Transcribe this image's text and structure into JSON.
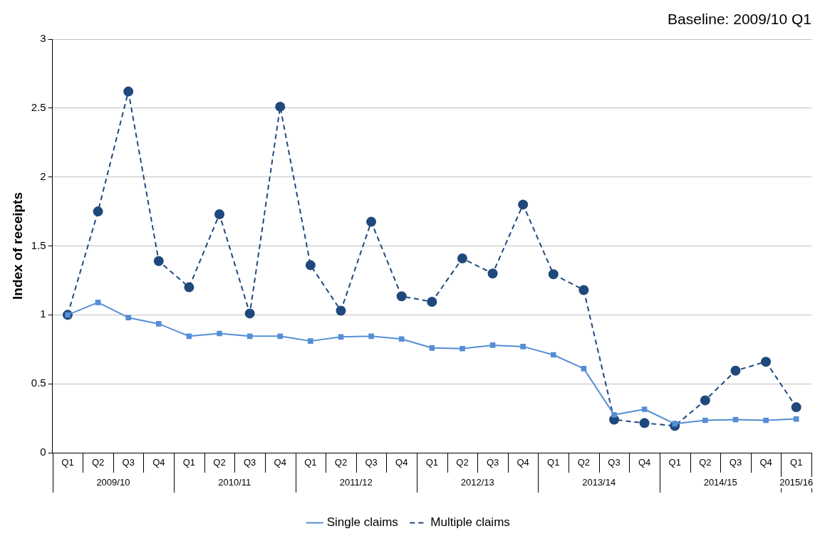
{
  "chart_data": {
    "type": "line",
    "ylabel": "Index of receipts",
    "annotations": [
      "Baseline: 2009/10 Q1",
      "2009/10",
      "2010/11",
      "2011/12",
      "2012/13",
      "2013/14",
      "2014/15",
      "2015/16"
    ],
    "categories": [
      "Q1",
      "Q2",
      "Q3",
      "Q4",
      "Q1",
      "Q2",
      "Q3",
      "Q4",
      "Q1",
      "Q2",
      "Q3",
      "Q4",
      "Q1",
      "Q2",
      "Q3",
      "Q4",
      "Q1",
      "Q2",
      "Q3",
      "Q4",
      "Q1",
      "Q2",
      "Q3",
      "Q4",
      "Q1"
    ],
    "series": [
      {
        "name": "Single claims",
        "color": "#558ed5",
        "marker": "square",
        "line_style": "solid",
        "values": [
          1.0,
          1.09,
          0.98,
          0.935,
          0.845,
          0.865,
          0.845,
          0.845,
          0.81,
          0.84,
          0.845,
          0.825,
          0.76,
          0.755,
          0.78,
          0.77,
          0.71,
          0.61,
          0.275,
          0.315,
          0.21,
          0.235,
          0.24,
          0.235,
          0.245
        ]
      },
      {
        "name": "Multiple claims",
        "color": "#1f497d",
        "marker": "circle",
        "line_style": "dashed",
        "values": [
          1.0,
          1.75,
          2.62,
          1.39,
          1.2,
          1.73,
          1.01,
          2.51,
          1.36,
          1.03,
          1.675,
          1.135,
          1.095,
          1.41,
          1.3,
          1.8,
          1.295,
          1.18,
          0.24,
          0.215,
          0.195,
          0.38,
          0.595,
          0.66,
          0.33
        ]
      }
    ],
    "ylim": [
      0,
      3
    ],
    "yticks": [
      0,
      0.5,
      1,
      1.5,
      2,
      2.5,
      3
    ],
    "grid": "y",
    "legend": "bottom"
  }
}
